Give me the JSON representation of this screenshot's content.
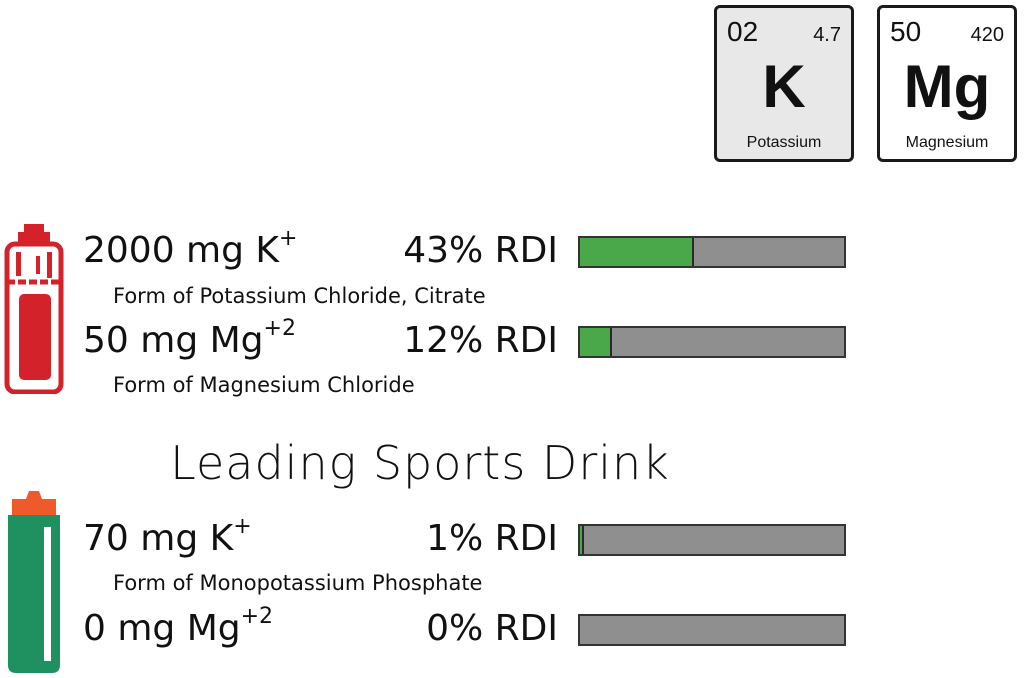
{
  "elements": [
    {
      "number": "02",
      "mass": "4.7",
      "symbol": "K",
      "name": "Potassium",
      "background": "#e8e8e8"
    },
    {
      "number": "50",
      "mass": "420",
      "symbol": "Mg",
      "name": "Magnesium",
      "background": "#ffffff"
    }
  ],
  "product": {
    "rows": [
      {
        "amount": "2000 mg K",
        "ion": "+",
        "rdi": "43% RDI",
        "rdi_percent": 43,
        "form": "Form of Potassium Chloride, Citrate"
      },
      {
        "amount": "50 mg Mg",
        "ion": "+2",
        "rdi": "12% RDI",
        "rdi_percent": 12,
        "form": "Form of Magnesium Chloride"
      }
    ],
    "bottle_color": "#d3222a"
  },
  "competitor": {
    "headline": "Leading Sports Drink",
    "rows": [
      {
        "amount": "70 mg K",
        "ion": "+",
        "rdi": "1% RDI",
        "rdi_percent": 1,
        "form": "Form of Monopotassium Phosphate"
      },
      {
        "amount": "0 mg Mg",
        "ion": "+2",
        "rdi": "0% RDI",
        "rdi_percent": 0,
        "form": ""
      }
    ],
    "bottle_color": "#1f9160",
    "cap_color": "#ee5a2a"
  },
  "colors": {
    "bar_fill": "#4aa84a",
    "bar_empty": "#8f8f8f"
  }
}
